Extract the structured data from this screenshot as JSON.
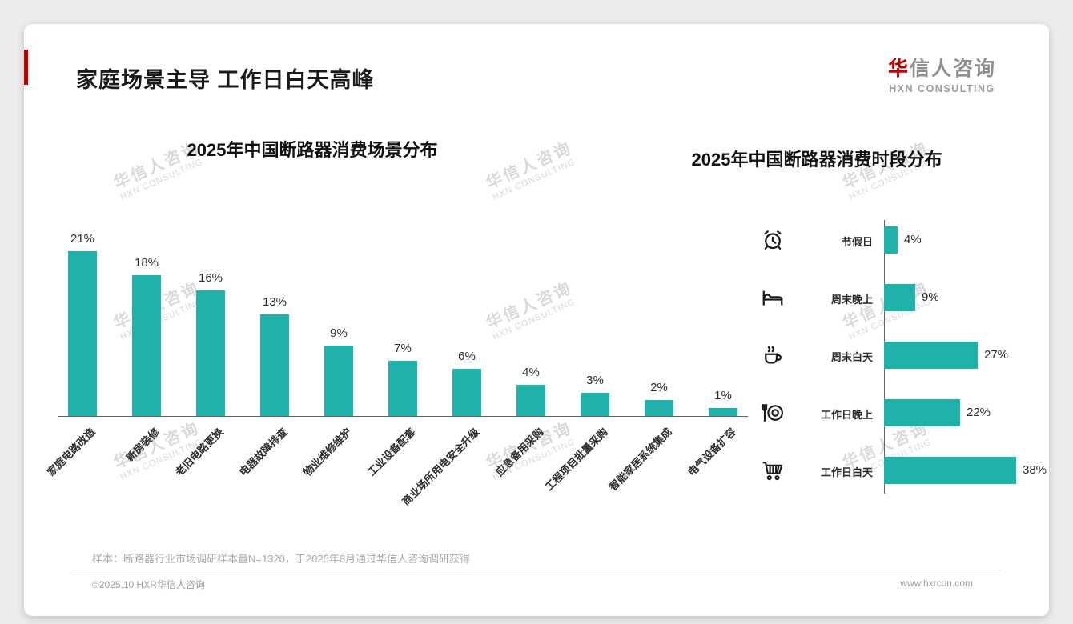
{
  "page": {
    "title": "家庭场景主导 工作日白天高峰",
    "logo": {
      "cn_first": "华",
      "cn_rest": "信人咨询",
      "en": "HXN CONSULTING"
    },
    "watermark": {
      "line1": "华信人咨询",
      "line2": "HXN CONSULTING"
    },
    "note": "样本：断路器行业市场调研样本量N=1320，于2025年8月通过华信人咨询调研获得",
    "footer_left": "©2025.10 HXR华信人咨询",
    "footer_right": "www.hxrcon.com"
  },
  "colors": {
    "bar": "#20b2aa",
    "accent_red": "#c00000"
  },
  "chart_data": [
    {
      "type": "bar",
      "orientation": "vertical",
      "title": "2025年中国断路器消费场景分布",
      "categories": [
        "家庭电路改造",
        "新房装修",
        "老旧电路更换",
        "电器故障排查",
        "物业维修维护",
        "工业设备配套",
        "商业场所用电安全升级",
        "应急备用采购",
        "工程项目批量采购",
        "智能家居系统集成",
        "电气设备扩容"
      ],
      "values": [
        21,
        18,
        16,
        13,
        9,
        7,
        6,
        4,
        3,
        2,
        1
      ],
      "unit": "%",
      "ylim": [
        0,
        23
      ],
      "grid": false,
      "bar_color": "#20b2aa"
    },
    {
      "type": "bar",
      "orientation": "horizontal",
      "title": "2025年中国断路器消费时段分布",
      "categories": [
        "节假日",
        "周末晚上",
        "周末白天",
        "工作日晚上",
        "工作日白天"
      ],
      "values": [
        4,
        9,
        27,
        22,
        38
      ],
      "icons": [
        "alarm-clock",
        "bed",
        "coffee",
        "dining",
        "shopping-cart"
      ],
      "unit": "%",
      "xlim": [
        0,
        40
      ],
      "grid": false,
      "bar_color": "#20b2aa"
    }
  ]
}
